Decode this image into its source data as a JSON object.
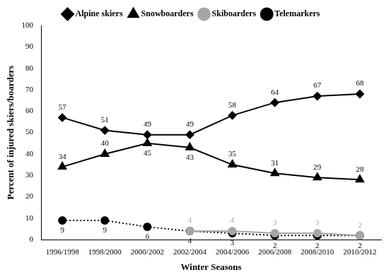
{
  "chart_data": {
    "type": "line",
    "categories": [
      "1996/1998",
      "1998/2000",
      "2000/2002",
      "2002/2004",
      "2004/2006",
      "2006/2008",
      "2008/2010",
      "2010/2012"
    ],
    "series": [
      {
        "name": "Alpine skiers",
        "color": "#000000",
        "marker": "diamond",
        "line_style": "solid",
        "values": [
          57,
          51,
          49,
          49,
          58,
          64,
          67,
          68
        ]
      },
      {
        "name": "Snowboarders",
        "color": "#000000",
        "marker": "triangle",
        "line_style": "solid",
        "values": [
          34,
          40,
          45,
          43,
          35,
          31,
          29,
          28
        ]
      },
      {
        "name": "Skiboarders",
        "color": "#a6a6a6",
        "marker": "circle",
        "line_style": "solid",
        "values": [
          null,
          null,
          null,
          4,
          4,
          3,
          3,
          2
        ]
      },
      {
        "name": "Telemarkers",
        "color": "#000000",
        "marker": "circle",
        "line_style": "dotted",
        "values": [
          9,
          9,
          6,
          4,
          3,
          2,
          2,
          2
        ]
      }
    ],
    "x_label": "Winter Seasons",
    "y_label": "Percent of injured skiers/boarders",
    "ylim": [
      0,
      100
    ],
    "yticks": [
      0,
      10,
      20,
      30,
      40,
      50,
      60,
      70,
      80,
      90,
      100
    ],
    "grid": false,
    "legend": "top",
    "data_labels": true
  }
}
